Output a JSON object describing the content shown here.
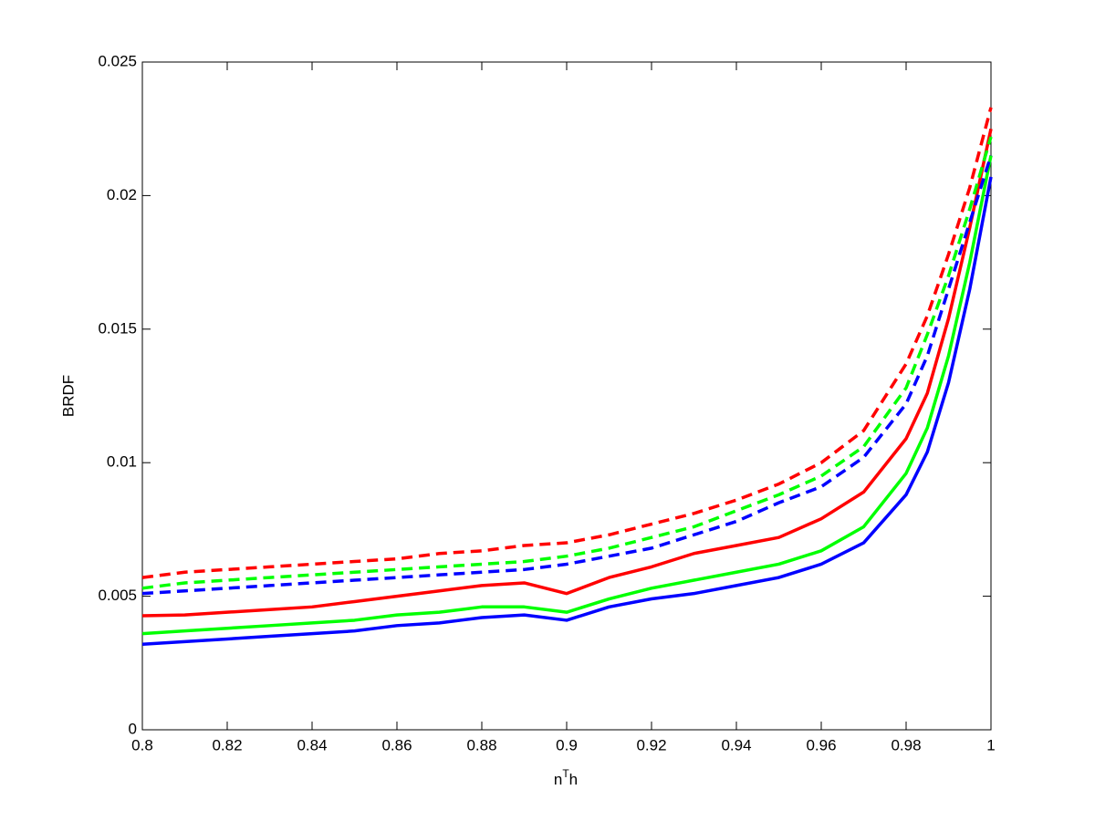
{
  "chart_data": {
    "type": "line",
    "x_label": [
      "n",
      "T",
      "h"
    ],
    "y_label": "BRDF",
    "x": [
      0.8,
      0.81,
      0.82,
      0.83,
      0.84,
      0.85,
      0.86,
      0.87,
      0.88,
      0.89,
      0.9,
      0.91,
      0.92,
      0.93,
      0.94,
      0.95,
      0.96,
      0.97,
      0.98,
      0.985,
      0.99,
      0.995,
      1.0
    ],
    "series": [
      {
        "color": "#ff0000",
        "dashed": false,
        "values": [
          0.00427,
          0.0043,
          0.0044,
          0.0045,
          0.0046,
          0.0048,
          0.005,
          0.0052,
          0.0054,
          0.0055,
          0.0051,
          0.0057,
          0.0061,
          0.0066,
          0.0069,
          0.0072,
          0.0079,
          0.0089,
          0.0109,
          0.0126,
          0.0154,
          0.0188,
          0.0225
        ]
      },
      {
        "color": "#00ff00",
        "dashed": false,
        "values": [
          0.0036,
          0.0037,
          0.0038,
          0.0039,
          0.004,
          0.0041,
          0.0043,
          0.0044,
          0.0046,
          0.0046,
          0.0044,
          0.0049,
          0.0053,
          0.0056,
          0.0059,
          0.0062,
          0.0067,
          0.0076,
          0.0096,
          0.0113,
          0.014,
          0.0175,
          0.0215
        ]
      },
      {
        "color": "#0000ff",
        "dashed": false,
        "values": [
          0.0032,
          0.0033,
          0.0034,
          0.0035,
          0.0036,
          0.0037,
          0.0039,
          0.004,
          0.0042,
          0.0043,
          0.0041,
          0.0046,
          0.0049,
          0.0051,
          0.0054,
          0.0057,
          0.0062,
          0.007,
          0.0088,
          0.0104,
          0.013,
          0.0165,
          0.0207
        ]
      },
      {
        "color": "#ff0000",
        "dashed": true,
        "values": [
          0.0057,
          0.0059,
          0.006,
          0.0061,
          0.0062,
          0.0063,
          0.0064,
          0.0066,
          0.0067,
          0.0069,
          0.007,
          0.0073,
          0.0077,
          0.0081,
          0.0086,
          0.0092,
          0.01,
          0.0112,
          0.0137,
          0.0155,
          0.0178,
          0.0203,
          0.0233
        ]
      },
      {
        "color": "#00ff00",
        "dashed": true,
        "values": [
          0.0053,
          0.0055,
          0.0056,
          0.0057,
          0.0058,
          0.0059,
          0.006,
          0.0061,
          0.0062,
          0.0063,
          0.0065,
          0.0068,
          0.0072,
          0.0076,
          0.0082,
          0.0088,
          0.0095,
          0.0106,
          0.0128,
          0.0148,
          0.017,
          0.0195,
          0.0222
        ]
      },
      {
        "color": "#0000ff",
        "dashed": true,
        "values": [
          0.0051,
          0.0052,
          0.0053,
          0.0054,
          0.0055,
          0.0056,
          0.0057,
          0.0058,
          0.0059,
          0.006,
          0.0062,
          0.0065,
          0.0068,
          0.0073,
          0.0078,
          0.0085,
          0.0091,
          0.0102,
          0.0122,
          0.014,
          0.0165,
          0.019,
          0.0215
        ]
      }
    ],
    "xlim": [
      0.8,
      1
    ],
    "xticks": [
      0.8,
      0.82,
      0.84,
      0.86,
      0.88,
      0.9,
      0.92,
      0.94,
      0.96,
      0.98,
      1
    ],
    "ylim": [
      0,
      0.025
    ],
    "yticks": [
      0,
      0.005,
      0.01,
      0.015,
      0.02,
      0.025
    ],
    "grid": false
  }
}
